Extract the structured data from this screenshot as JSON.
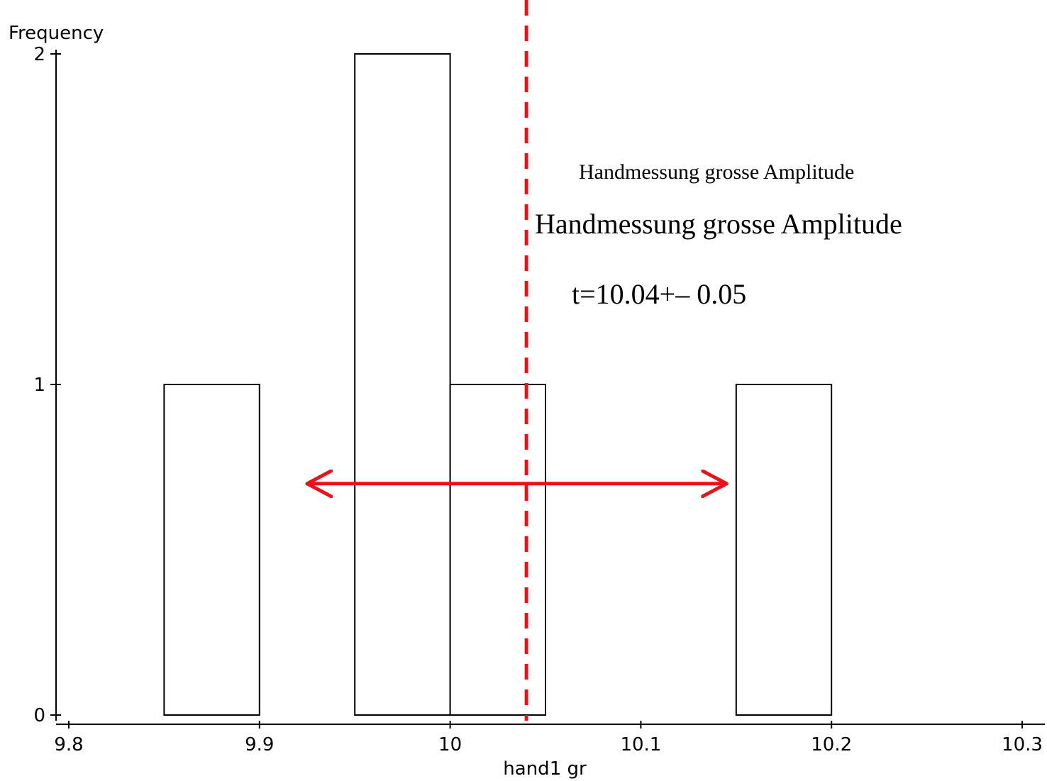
{
  "chart_data": {
    "type": "bar",
    "subtype": "histogram",
    "ylabel": "Frequency",
    "xlabel": "hand1 gr",
    "xlim": [
      9.8,
      10.3
    ],
    "ylim": [
      0,
      2
    ],
    "x_ticks": [
      9.8,
      9.9,
      10.0,
      10.1,
      10.2,
      10.3
    ],
    "x_tick_labels": [
      "9.8",
      "9.9",
      "10",
      "10.1",
      "10.2",
      "10.3"
    ],
    "y_ticks": [
      0,
      1,
      2
    ],
    "y_tick_labels": [
      "0",
      "1",
      "2"
    ],
    "bins": [
      {
        "start": 9.85,
        "end": 9.9,
        "count": 1
      },
      {
        "start": 9.95,
        "end": 10.0,
        "count": 2
      },
      {
        "start": 10.0,
        "end": 10.05,
        "count": 1
      },
      {
        "start": 10.15,
        "end": 10.2,
        "count": 1
      }
    ],
    "bar_fill": "#ffffff",
    "bar_stroke": "#000000",
    "grid": false,
    "legend": "none",
    "mean_line": {
      "x": 10.04,
      "color": "#e8141a",
      "style": "dashed"
    },
    "spread_arrow": {
      "from": 9.925,
      "to": 10.145,
      "y": 0.7,
      "color": "#e8141a"
    },
    "annotations": {
      "title_small": "Handmessung grosse Amplitude",
      "title_large": "Handmessung grosse Amplitude",
      "result": "t=10.04+– 0.05"
    }
  }
}
